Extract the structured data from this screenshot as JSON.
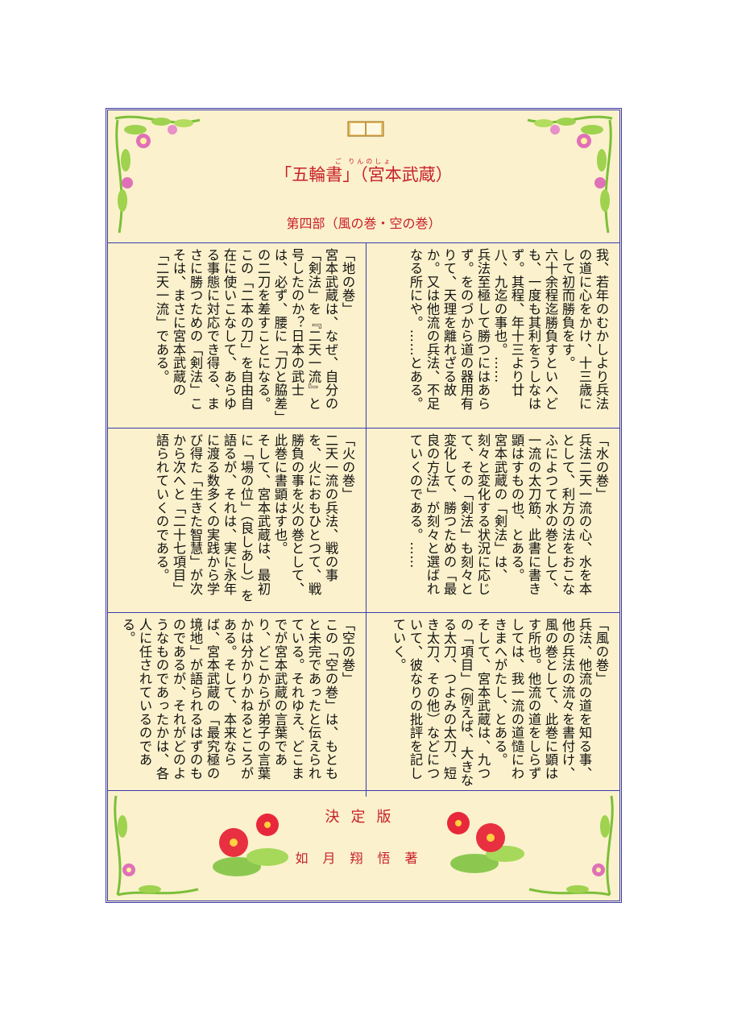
{
  "header": {
    "ruby": "ご りんのしょ",
    "title": "「五輪書」（宮本武蔵）",
    "subtitle": "第四部（風の巻・空の巻）",
    "book_icon": "open-book-icon"
  },
  "cells": [
    {
      "id": "intro",
      "paragraphs": [
        "我、若年のむかしより兵法の道に心をかけ、十三歳にして初而勝負をす。",
        "六十余程迄勝負すといへども、一度も其利をうしなはず。其程、年十三より廿八、九迄の事也。……",
        "兵法至極して勝つにはあらず。をのづから道の器用有りて、天理を離れざる故か。又は他流の兵法、不足なる所にや。……とある。"
      ]
    },
    {
      "id": "chi",
      "paragraphs": [
        "「地の巻」",
        "宮本武蔵は、なぜ、自分の「剣法」を『二天一流』と号したのか？日本の武士は、必ず、腰に「刀と脇差」の二刀を差すことになる。",
        "この「二本の刀」を自由自在に使いこなして、あらゆる事態に対応でき得る、まさに勝つための「剣法」こそは、まさに宮本武蔵の「二天一流」である。"
      ]
    },
    {
      "id": "mizu",
      "paragraphs": [
        "「水の巻」",
        "兵法二天一流の心、水を本として、利方の法をおこなふによつて水の巻として、一流の太刀筋、此書に書き顕はすもの也、とある。",
        "宮本武蔵の「剣法」は、刻々と変化する状況に応じて、その「剣法」も刻々と変化して、勝つための「最良の方法」が刻々と選ばれていくのである。……"
      ]
    },
    {
      "id": "hi",
      "paragraphs": [
        "「火の巻」",
        "二天一流の兵法、戦の事を、火におもひとつて、戦勝負の事を火の巻として、此巻に書顕はす也。",
        "そして、宮本武蔵は、最初に「場の位」（良しあし）を語るが、それは、実に永年に渡る数多くの実践から学び得た「生きた智慧」が次から次へと「二十七項目」語られていくのである。"
      ]
    },
    {
      "id": "kaze",
      "paragraphs": [
        "「風の巻」",
        "兵法、他流の道を知る事、他の兵法の流々を書付け、風の巻として、此巻に顕はす所也。他流の道をしらずしては、我一流の道慥にわきまへがたし、とある。",
        "そして、宮本武蔵は、九つの「項目」（例えば、大きなる太刀、つよみの太刀、短き太刀、その他）などについて、彼なりの批評を記していく。"
      ]
    },
    {
      "id": "sora",
      "paragraphs": [
        "「空の巻」",
        "この「空の巻」は、もともと未完であったと伝えられている。それゆえ、どこまでが宮本武蔵の言葉であり、どこからが弟子の言葉かは分かりかねるところがある。そして、本来ならば、宮本武蔵の「最究極の境地」が語られるはずのものであるが、それがどのようなものであったかは、各人に任されているのである。"
      ]
    }
  ],
  "footer": {
    "edition": "決定版",
    "author": "如月翔悟著",
    "flower_icon": "hibiscus-icon"
  },
  "colors": {
    "title_red": "#c8202a",
    "frame_blue": "#3a3ab0",
    "paper": "#fbf1cc"
  }
}
